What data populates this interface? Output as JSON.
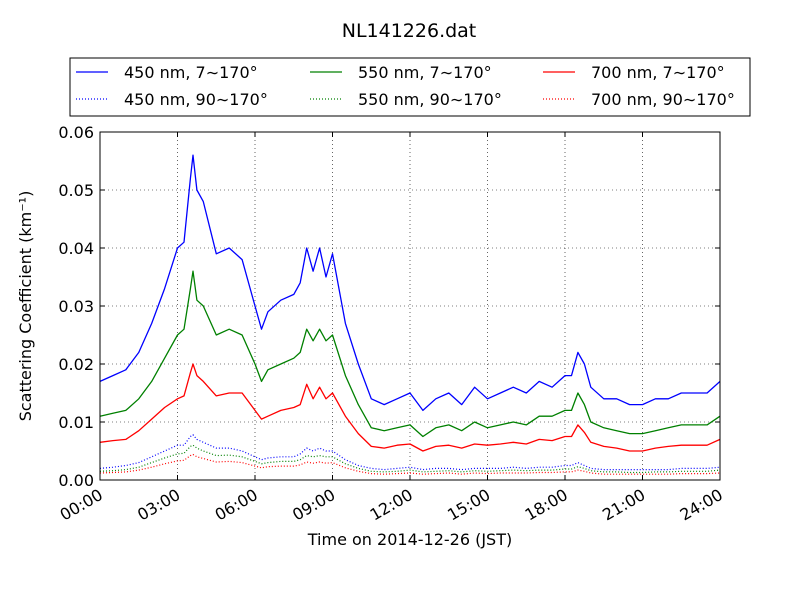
{
  "chart_data": {
    "type": "line",
    "title": "NL141226.dat",
    "xlabel": "Time on 2014-12-26 (JST)",
    "ylabel": "Scattering Coefficient (km⁻¹)",
    "xlim": [
      0,
      24
    ],
    "ylim": [
      0,
      0.06
    ],
    "grid": true,
    "x_tick_labels": [
      "00:00",
      "03:00",
      "06:00",
      "09:00",
      "12:00",
      "15:00",
      "18:00",
      "21:00",
      "24:00"
    ],
    "y_tick_labels": [
      "0.00",
      "0.01",
      "0.02",
      "0.03",
      "0.04",
      "0.05",
      "0.06"
    ],
    "legend_position": "top, above plot",
    "x": [
      0,
      0.5,
      1,
      1.5,
      2,
      2.5,
      3,
      3.25,
      3.5,
      3.6,
      3.75,
      4,
      4.5,
      5,
      5.5,
      6,
      6.25,
      6.5,
      7,
      7.5,
      7.75,
      8,
      8.25,
      8.5,
      8.75,
      9,
      9.5,
      10,
      10.5,
      11,
      11.5,
      12,
      12.5,
      13,
      13.5,
      14,
      14.5,
      15,
      15.5,
      16,
      16.5,
      17,
      17.5,
      18,
      18.25,
      18.5,
      18.75,
      19,
      19.5,
      20,
      20.5,
      21,
      21.5,
      22,
      22.5,
      23,
      23.5,
      24
    ],
    "series": [
      {
        "name": "450 nm, 7∼170°",
        "color": "#0000ff",
        "style": "solid",
        "values": [
          0.017,
          0.018,
          0.019,
          0.022,
          0.027,
          0.033,
          0.04,
          0.041,
          0.052,
          0.056,
          0.05,
          0.048,
          0.039,
          0.04,
          0.038,
          0.03,
          0.026,
          0.029,
          0.031,
          0.032,
          0.034,
          0.04,
          0.036,
          0.04,
          0.035,
          0.039,
          0.027,
          0.02,
          0.014,
          0.013,
          0.014,
          0.015,
          0.012,
          0.014,
          0.015,
          0.013,
          0.016,
          0.014,
          0.015,
          0.016,
          0.015,
          0.017,
          0.016,
          0.018,
          0.018,
          0.022,
          0.02,
          0.016,
          0.014,
          0.014,
          0.013,
          0.013,
          0.014,
          0.014,
          0.015,
          0.015,
          0.015,
          0.017
        ]
      },
      {
        "name": "450 nm, 90∼170°",
        "color": "#0000ff",
        "style": "dotted",
        "values": [
          0.002,
          0.0022,
          0.0025,
          0.003,
          0.004,
          0.005,
          0.006,
          0.006,
          0.0075,
          0.0078,
          0.007,
          0.0065,
          0.0055,
          0.0055,
          0.005,
          0.004,
          0.0035,
          0.0038,
          0.004,
          0.004,
          0.0045,
          0.0055,
          0.005,
          0.0055,
          0.005,
          0.005,
          0.0035,
          0.0025,
          0.002,
          0.0018,
          0.002,
          0.0022,
          0.0018,
          0.002,
          0.002,
          0.0018,
          0.002,
          0.002,
          0.002,
          0.0022,
          0.002,
          0.0022,
          0.0022,
          0.0025,
          0.0025,
          0.003,
          0.0025,
          0.002,
          0.0018,
          0.0018,
          0.0018,
          0.0018,
          0.0018,
          0.0018,
          0.002,
          0.002,
          0.002,
          0.0022
        ]
      },
      {
        "name": "550 nm, 7∼170°",
        "color": "#008000",
        "style": "solid",
        "values": [
          0.011,
          0.0115,
          0.012,
          0.014,
          0.017,
          0.021,
          0.025,
          0.026,
          0.033,
          0.036,
          0.031,
          0.03,
          0.025,
          0.026,
          0.025,
          0.02,
          0.017,
          0.019,
          0.02,
          0.021,
          0.022,
          0.026,
          0.024,
          0.026,
          0.024,
          0.025,
          0.018,
          0.013,
          0.009,
          0.0085,
          0.009,
          0.0095,
          0.0075,
          0.009,
          0.0095,
          0.0085,
          0.01,
          0.009,
          0.0095,
          0.01,
          0.0095,
          0.011,
          0.011,
          0.012,
          0.012,
          0.015,
          0.013,
          0.01,
          0.009,
          0.0085,
          0.008,
          0.008,
          0.0085,
          0.009,
          0.0095,
          0.0095,
          0.0095,
          0.011
        ]
      },
      {
        "name": "550 nm, 90∼170°",
        "color": "#008000",
        "style": "dotted",
        "values": [
          0.0015,
          0.0016,
          0.0018,
          0.0022,
          0.003,
          0.0038,
          0.0045,
          0.0046,
          0.0058,
          0.006,
          0.0055,
          0.005,
          0.0042,
          0.0043,
          0.004,
          0.0032,
          0.0028,
          0.003,
          0.0032,
          0.0032,
          0.0035,
          0.0042,
          0.004,
          0.0042,
          0.004,
          0.004,
          0.0028,
          0.002,
          0.0015,
          0.0014,
          0.0015,
          0.0017,
          0.0014,
          0.0015,
          0.0016,
          0.0014,
          0.0016,
          0.0015,
          0.0016,
          0.0017,
          0.0016,
          0.0017,
          0.0017,
          0.0019,
          0.0019,
          0.0023,
          0.002,
          0.0016,
          0.0014,
          0.0014,
          0.0013,
          0.0013,
          0.0014,
          0.0014,
          0.0015,
          0.0015,
          0.0015,
          0.0017
        ]
      },
      {
        "name": "700 nm, 7∼170°",
        "color": "#ff0000",
        "style": "solid",
        "values": [
          0.0065,
          0.0068,
          0.007,
          0.0085,
          0.0105,
          0.0125,
          0.014,
          0.0145,
          0.0185,
          0.02,
          0.018,
          0.017,
          0.0145,
          0.015,
          0.015,
          0.012,
          0.0105,
          0.011,
          0.012,
          0.0125,
          0.013,
          0.0165,
          0.014,
          0.016,
          0.014,
          0.015,
          0.011,
          0.008,
          0.0058,
          0.0055,
          0.006,
          0.0062,
          0.005,
          0.0058,
          0.006,
          0.0055,
          0.0062,
          0.006,
          0.0062,
          0.0065,
          0.0062,
          0.007,
          0.0068,
          0.0075,
          0.0075,
          0.0095,
          0.0082,
          0.0065,
          0.0058,
          0.0055,
          0.005,
          0.005,
          0.0055,
          0.0058,
          0.006,
          0.006,
          0.006,
          0.007
        ]
      },
      {
        "name": "700 nm, 90∼170°",
        "color": "#ff0000",
        "style": "dotted",
        "values": [
          0.0012,
          0.0013,
          0.0014,
          0.0017,
          0.0022,
          0.0028,
          0.0033,
          0.0034,
          0.0042,
          0.0044,
          0.004,
          0.0037,
          0.0031,
          0.0032,
          0.003,
          0.0024,
          0.0021,
          0.0023,
          0.0024,
          0.0024,
          0.0026,
          0.0031,
          0.0029,
          0.0031,
          0.0029,
          0.003,
          0.0021,
          0.0015,
          0.0011,
          0.001,
          0.0011,
          0.0012,
          0.001,
          0.0011,
          0.0012,
          0.001,
          0.0012,
          0.0011,
          0.0012,
          0.0012,
          0.0012,
          0.0013,
          0.0013,
          0.0014,
          0.0014,
          0.0017,
          0.0015,
          0.0012,
          0.001,
          0.001,
          0.001,
          0.001,
          0.001,
          0.001,
          0.0011,
          0.0011,
          0.0011,
          0.0012
        ]
      }
    ]
  }
}
